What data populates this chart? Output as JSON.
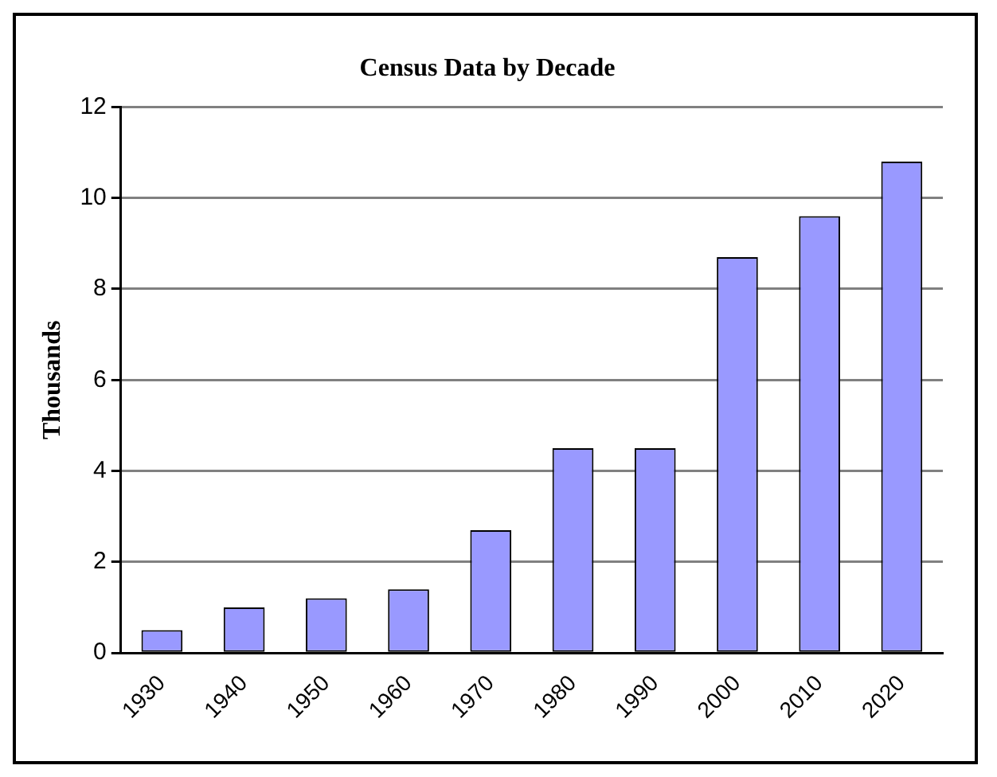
{
  "chart_data": {
    "type": "bar",
    "title": "Census Data by Decade",
    "ylabel": "Thousands",
    "categories": [
      "1930",
      "1940",
      "1950",
      "1960",
      "1970",
      "1980",
      "1990",
      "2000",
      "2010",
      "2020"
    ],
    "values": [
      0.5,
      1.0,
      1.2,
      1.4,
      2.7,
      4.5,
      4.5,
      8.7,
      9.6,
      10.8
    ],
    "color": "#9999ff",
    "ylim": [
      0,
      12
    ],
    "yticks": [
      0,
      2,
      4,
      6,
      8,
      10,
      12
    ],
    "grid": "y"
  }
}
